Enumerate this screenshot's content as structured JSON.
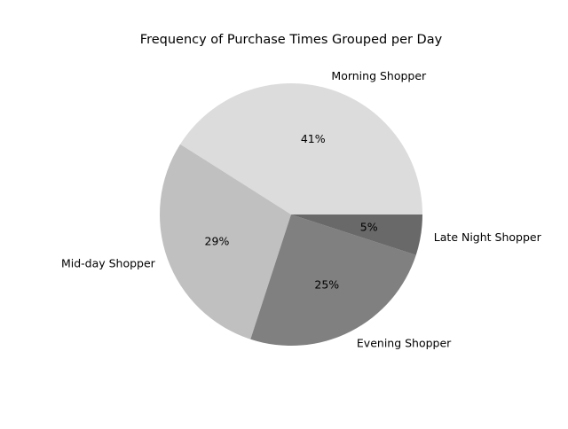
{
  "chart_data": {
    "type": "pie",
    "title": "Frequency of Purchase Times Grouped per Day",
    "categories": [
      "Morning Shopper",
      "Mid-day Shopper",
      "Evening Shopper",
      "Late Night Shopper"
    ],
    "values": [
      41,
      29,
      25,
      5
    ],
    "value_labels": [
      "41%",
      "29%",
      "25%",
      "5%"
    ],
    "colors": [
      "#dcdcdc",
      "#c0c0c0",
      "#808080",
      "#696969"
    ],
    "start_angle_deg": 0,
    "direction": "counterclockwise",
    "legend": "none"
  }
}
